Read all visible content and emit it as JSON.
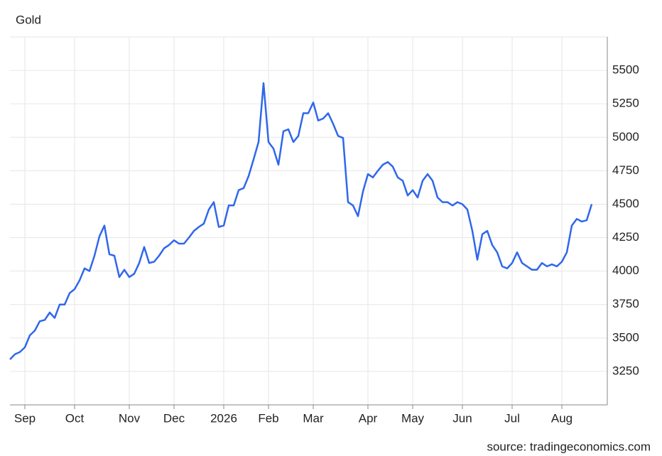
{
  "chart_data": {
    "type": "line",
    "title": "Gold",
    "source": "source: tradingeconomics.com",
    "categories": [
      null,
      null,
      null,
      "Sep",
      null,
      null,
      null,
      null,
      null,
      null,
      null,
      null,
      null,
      "Oct",
      null,
      null,
      null,
      null,
      null,
      null,
      null,
      null,
      null,
      null,
      "Nov",
      null,
      null,
      null,
      null,
      null,
      null,
      null,
      null,
      "Dec",
      null,
      null,
      null,
      null,
      null,
      null,
      null,
      null,
      null,
      "2026",
      null,
      null,
      null,
      null,
      null,
      null,
      null,
      null,
      "Feb",
      null,
      null,
      null,
      null,
      null,
      null,
      null,
      null,
      "Mar",
      null,
      null,
      null,
      null,
      null,
      null,
      null,
      null,
      null,
      null,
      "Apr",
      null,
      null,
      null,
      null,
      null,
      null,
      null,
      null,
      "May",
      null,
      null,
      null,
      null,
      null,
      null,
      null,
      null,
      null,
      "Jun",
      null,
      null,
      null,
      null,
      null,
      null,
      null,
      null,
      null,
      "Jul",
      null,
      null,
      null,
      null,
      null,
      null,
      null,
      null,
      null,
      "Aug",
      null,
      null,
      null,
      null,
      null,
      null
    ],
    "series": [
      {
        "name": "Gold",
        "color": "#2f67ec",
        "values": [
          3340,
          3378,
          3395,
          3430,
          3520,
          3555,
          3625,
          3635,
          3690,
          3650,
          3750,
          3750,
          3835,
          3865,
          3930,
          4020,
          4000,
          4115,
          4260,
          4340,
          4125,
          4115,
          3955,
          4010,
          3955,
          3980,
          4060,
          4180,
          4060,
          4070,
          4115,
          4170,
          4195,
          4230,
          4205,
          4205,
          4250,
          4300,
          4330,
          4355,
          4460,
          4515,
          4330,
          4340,
          4490,
          4490,
          4605,
          4620,
          4710,
          4835,
          4965,
          5405,
          4965,
          4915,
          4795,
          5045,
          5060,
          4965,
          5010,
          5180,
          5180,
          5260,
          5125,
          5140,
          5180,
          5100,
          5010,
          4995,
          4515,
          4490,
          4410,
          4595,
          4725,
          4700,
          4750,
          4795,
          4815,
          4780,
          4700,
          4675,
          4565,
          4605,
          4550,
          4675,
          4725,
          4675,
          4550,
          4515,
          4515,
          4490,
          4515,
          4500,
          4460,
          4300,
          4085,
          4275,
          4300,
          4195,
          4140,
          4035,
          4020,
          4060,
          4140,
          4060,
          4035,
          4010,
          4010,
          4060,
          4035,
          4050,
          4035,
          4070,
          4140,
          4340,
          4390,
          4370,
          4380,
          4500
        ]
      }
    ],
    "ylim": [
      3000,
      5750
    ],
    "yticks": [
      3250,
      3500,
      3750,
      4000,
      4250,
      4500,
      4750,
      5000,
      5250,
      5500
    ],
    "grid": true
  }
}
